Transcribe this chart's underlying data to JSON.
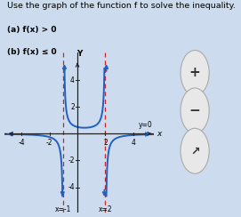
{
  "title": "Use the graph of the function f to solve the inequality.",
  "subtitle_a": "(a) f(x) > 0",
  "subtitle_b": "(b) f(x) ≤ 0",
  "va1": -1,
  "va2": 2,
  "xlim": [
    -5.2,
    5.5
  ],
  "ylim": [
    -5.0,
    5.5
  ],
  "xticks": [
    -4,
    -2,
    2,
    4
  ],
  "yticks": [
    -4,
    -2,
    2,
    4
  ],
  "ha_label": "y=0",
  "va1_label": "x=-1",
  "va2_label": "x=2",
  "curve_color": "#2060c0",
  "asymptote_color": "#cc2222",
  "bg_color": "#ccdcee",
  "axis_color": "#222222",
  "text_color": "#000000",
  "font_size_title": 6.8,
  "font_size_sub": 6.5,
  "font_size_tick": 5.5,
  "font_size_label": 6.0
}
